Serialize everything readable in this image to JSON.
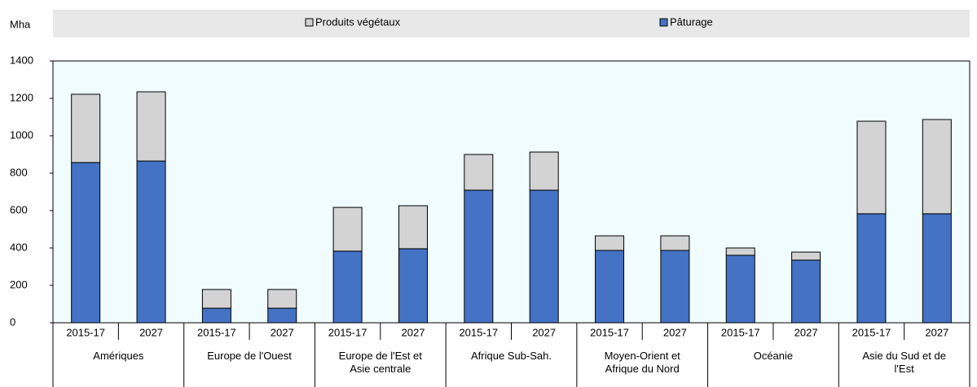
{
  "chart_data": {
    "type": "stacked_bar",
    "y_label": "Mha",
    "groups": [
      "Amériques",
      "Europe de l'Ouest",
      "Europe de l'Est et Asie centrale",
      "Afrique Sub-Sah.",
      "Moyen-Orient et Afrique du Nord",
      "Océanie",
      "Asie du Sud et de l'Est"
    ],
    "categories": [
      "2015-17",
      "2027",
      "2015-17",
      "2027",
      "2015-17",
      "2027",
      "2015-17",
      "2027",
      "2015-17",
      "2027",
      "2015-17",
      "2027",
      "2015-17",
      "2027"
    ],
    "series": [
      {
        "name": "Produits végétaux",
        "color": "#d3d3d3",
        "values": [
          365,
          370,
          100,
          100,
          234,
          230,
          191,
          204,
          78,
          78,
          39,
          43,
          495,
          504
        ]
      },
      {
        "name": "Pâturage",
        "color": "#4472c4",
        "values": [
          857,
          865,
          78,
          78,
          383,
          396,
          709,
          709,
          387,
          387,
          361,
          335,
          583,
          583
        ]
      }
    ],
    "ylim": [
      0,
      1400
    ],
    "yticks": [
      0,
      200,
      400,
      600,
      800,
      1000,
      1200,
      1400
    ]
  }
}
